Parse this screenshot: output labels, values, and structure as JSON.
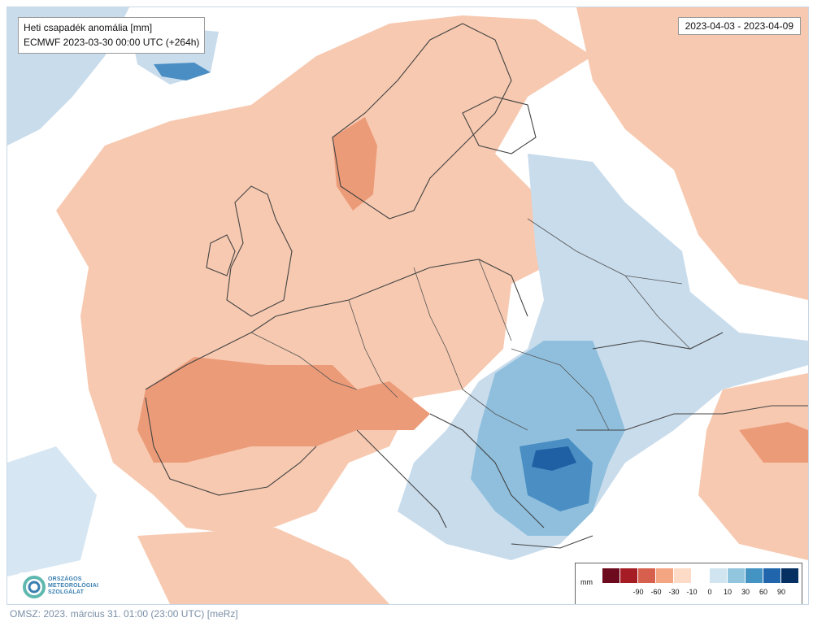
{
  "header": {
    "title": "Heti csapadék anomália [mm]",
    "model_run": "ECMWF 2023-03-30 00:00 UTC (+264h)",
    "valid_period": "2023-04-03 - 2023-04-09"
  },
  "legend": {
    "unit": "mm",
    "colors": [
      "#6e0a1e",
      "#a51c24",
      "#d6604d",
      "#f4a582",
      "#fddbc7",
      "#ffffff",
      "#d1e5f0",
      "#92c5de",
      "#4393c3",
      "#2166ac",
      "#053061"
    ],
    "ticks": [
      "-90",
      "-60",
      "-30",
      "-10",
      "0",
      "10",
      "30",
      "60",
      "90"
    ]
  },
  "logo": {
    "line1": "ORSZÁGOS",
    "line2": "METEOROLÓGIAI",
    "line3": "SZOLGÁLAT"
  },
  "footer": {
    "text": "OMSZ: 2023. március 31. 01:00 (23:00  UTC)  [meRz]"
  },
  "map": {
    "region": "Europe",
    "field": "weekly precipitation anomaly",
    "colors": {
      "dry_light": "#f7c9b0",
      "dry_mid": "#ec9b78",
      "wet_light": "#c9dcec",
      "wet_mid": "#8fbfdd",
      "wet_strong": "#4a8ec4",
      "wet_max": "#1f5fa3",
      "borders": "#444444"
    }
  }
}
